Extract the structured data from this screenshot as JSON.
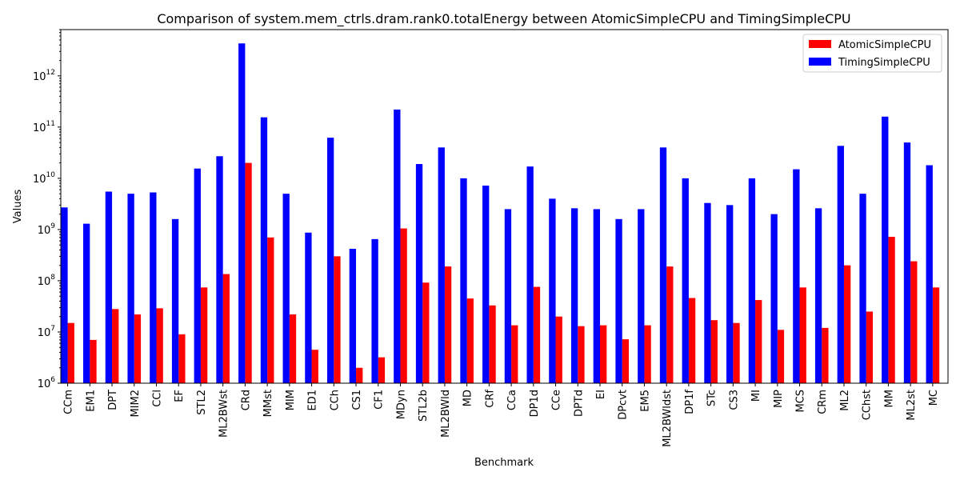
{
  "chart_data": {
    "type": "bar",
    "title": "Comparison of system.mem_ctrls.dram.rank0.totalEnergy between AtomicSimpleCPU and TimingSimpleCPU",
    "xlabel": "Benchmark",
    "ylabel": "Values",
    "yscale": "log",
    "ylim": [
      1000000,
      8000000000000
    ],
    "yticks": [
      {
        "value": 1000000,
        "base": "10",
        "exp": "6"
      },
      {
        "value": 10000000,
        "base": "10",
        "exp": "7"
      },
      {
        "value": 100000000,
        "base": "10",
        "exp": "8"
      },
      {
        "value": 1000000000,
        "base": "10",
        "exp": "9"
      },
      {
        "value": 10000000000,
        "base": "10",
        "exp": "10"
      },
      {
        "value": 100000000000,
        "base": "10",
        "exp": "11"
      },
      {
        "value": 1000000000000,
        "base": "10",
        "exp": "12"
      }
    ],
    "grid": false,
    "legend_position": "top-right",
    "categories": [
      "CCm",
      "EM1",
      "DPT",
      "MIM2",
      "CCl",
      "EF",
      "STL2",
      "ML2BWst",
      "CRd",
      "MMst",
      "MIM",
      "ED1",
      "CCh",
      "CS1",
      "CF1",
      "MDyn",
      "STL2b",
      "ML2BWld",
      "MD",
      "CRf",
      "CCa",
      "DP1d",
      "CCe",
      "DPTd",
      "EI",
      "DPcvt",
      "EM5",
      "ML2BWldst",
      "DP1f",
      "STc",
      "CS3",
      "MI",
      "MIP",
      "MCS",
      "CRm",
      "ML2",
      "CChst",
      "MM",
      "ML2st",
      "MC"
    ],
    "series": [
      {
        "name": "AtomicSimpleCPU",
        "color": "#ff0000",
        "values": [
          15000000,
          7000000,
          28000000,
          22000000,
          29000000,
          9000000,
          74000000,
          135000000,
          20000000000,
          700000000,
          22000000,
          4500000,
          300000000,
          2000000,
          3200000,
          1050000000,
          92000000,
          190000000,
          45000000,
          33000000,
          13500000,
          76000000,
          20000000,
          13000000,
          13500000,
          7200000,
          13500000,
          190000000,
          46000000,
          17000000,
          15000000,
          42000000,
          11000000,
          74000000,
          12000000,
          200000000,
          25000000,
          720000000,
          240000000,
          74000000
        ]
      },
      {
        "name": "TimingSimpleCPU",
        "color": "#0000ff",
        "values": [
          2700000000,
          1300000000,
          5500000000,
          5000000000,
          5300000000,
          1600000000,
          15500000000,
          27000000000,
          4300000000000,
          155000000000,
          5000000000,
          870000000,
          62000000000,
          420000000,
          650000000,
          220000000000,
          19000000000,
          40000000000,
          10000000000,
          7200000000,
          2500000000,
          17000000000,
          4000000000,
          2600000000,
          2500000000,
          1600000000,
          2500000000,
          40000000000,
          10000000000,
          3300000000,
          3000000000,
          10000000000,
          2000000000,
          15000000000,
          2600000000,
          43000000000,
          5000000000,
          160000000000,
          50000000000,
          18000000000
        ]
      }
    ]
  }
}
